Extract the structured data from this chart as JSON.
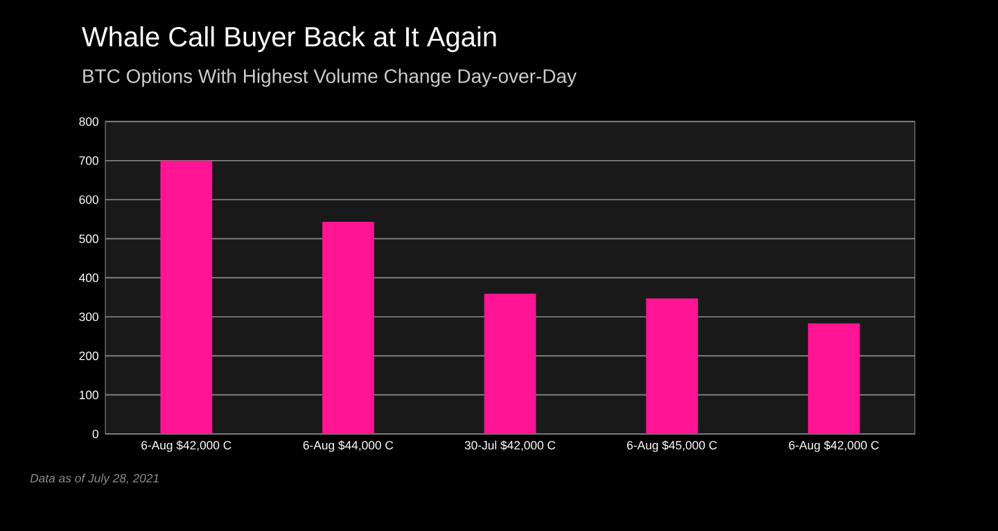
{
  "chart_data": {
    "type": "bar",
    "title": "Whale Call Buyer Back at It Again",
    "subtitle": "BTC Options With Highest Volume Change Day-over-Day",
    "categories": [
      "6-Aug $42,000 C",
      "6-Aug $44,000 C",
      "30-Jul $42,000 C",
      "6-Aug $45,000 C",
      "6-Aug $42,000 C"
    ],
    "values": [
      700,
      543,
      359,
      347,
      283
    ],
    "color": "#ff1493",
    "ylim": [
      0,
      800
    ],
    "yticks": [
      0,
      100,
      200,
      300,
      400,
      500,
      600,
      700,
      800
    ],
    "grid": "y",
    "annotations": [
      "Data as of July 28, 2021"
    ]
  }
}
